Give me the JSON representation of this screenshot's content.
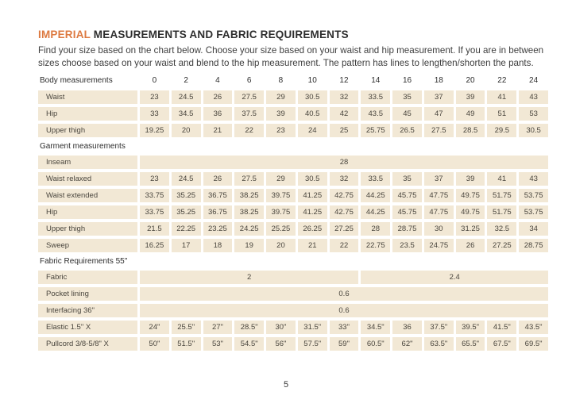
{
  "page": {
    "number": "5"
  },
  "colors": {
    "accent_orange": "#dd7a41",
    "cell_beige": "#f2e8d5",
    "text_dark": "#2d2d2d"
  },
  "header": {
    "title_accent": "IMPERIAL",
    "title_rest": " MEASUREMENTS AND FABRIC REQUIREMENTS",
    "intro": "Find your size based on the chart below. Choose your size based on your waist and hip measurement. If you are in between sizes choose based on your waist and blend to the hip measurement. The pattern has lines to lengthen/shorten the pants."
  },
  "table": {
    "header_row": {
      "label": "Body measurements",
      "sizes": [
        "0",
        "2",
        "4",
        "6",
        "8",
        "10",
        "12",
        "14",
        "16",
        "18",
        "20",
        "22",
        "24"
      ]
    },
    "sections": [
      {
        "heading": "",
        "rows": [
          {
            "label": "Waist",
            "values": [
              "23",
              "24.5",
              "26",
              "27.5",
              "29",
              "30.5",
              "32",
              "33.5",
              "35",
              "37",
              "39",
              "41",
              "43"
            ]
          },
          {
            "label": "Hip",
            "values": [
              "33",
              "34.5",
              "36",
              "37.5",
              "39",
              "40.5",
              "42",
              "43.5",
              "45",
              "47",
              "49",
              "51",
              "53"
            ]
          },
          {
            "label": "Upper thigh",
            "values": [
              "19.25",
              "20",
              "21",
              "22",
              "23",
              "24",
              "25",
              "25.75",
              "26.5",
              "27.5",
              "28.5",
              "29.5",
              "30.5"
            ]
          }
        ]
      },
      {
        "heading": "Garment measurements",
        "rows": [
          {
            "label": "Inseam",
            "merged": [
              {
                "text": "28",
                "span": 13
              }
            ]
          },
          {
            "label": "Waist relaxed",
            "values": [
              "23",
              "24.5",
              "26",
              "27.5",
              "29",
              "30.5",
              "32",
              "33.5",
              "35",
              "37",
              "39",
              "41",
              "43"
            ]
          },
          {
            "label": "Waist extended",
            "values": [
              "33.75",
              "35.25",
              "36.75",
              "38.25",
              "39.75",
              "41.25",
              "42.75",
              "44.25",
              "45.75",
              "47.75",
              "49.75",
              "51.75",
              "53.75"
            ]
          },
          {
            "label": "Hip",
            "values": [
              "33.75",
              "35.25",
              "36.75",
              "38.25",
              "39.75",
              "41.25",
              "42.75",
              "44.25",
              "45.75",
              "47.75",
              "49.75",
              "51.75",
              "53.75"
            ]
          },
          {
            "label": "Upper thigh",
            "values": [
              "21.5",
              "22.25",
              "23.25",
              "24.25",
              "25.25",
              "26.25",
              "27.25",
              "28",
              "28.75",
              "30",
              "31.25",
              "32.5",
              "34"
            ]
          },
          {
            "label": "Sweep",
            "values": [
              "16.25",
              "17",
              "18",
              "19",
              "20",
              "21",
              "22",
              "22.75",
              "23.5",
              "24.75",
              "26",
              "27.25",
              "28.75"
            ]
          }
        ]
      },
      {
        "heading": "Fabric Requirements 55\"",
        "rows": [
          {
            "label": "Fabric",
            "merged": [
              {
                "text": "2",
                "span": 7
              },
              {
                "text": "2.4",
                "span": 6
              }
            ]
          },
          {
            "label": "Pocket lining",
            "merged": [
              {
                "text": "0.6",
                "span": 13
              }
            ]
          },
          {
            "label": "Interfacing 36\"",
            "merged": [
              {
                "text": "0.6",
                "span": 13
              }
            ]
          },
          {
            "label": "Elastic 1.5\" X",
            "values": [
              "24\"",
              "25.5\"",
              "27\"",
              "28.5\"",
              "30\"",
              "31.5\"",
              "33\"",
              "34.5\"",
              "36",
              "37.5\"",
              "39.5\"",
              "41.5\"",
              "43.5\""
            ]
          },
          {
            "label": "Pullcord 3/8-5/8\" X",
            "values": [
              "50\"",
              "51.5\"",
              "53\"",
              "54.5\"",
              "56\"",
              "57.5\"",
              "59\"",
              "60.5\"",
              "62\"",
              "63.5\"",
              "65.5\"",
              "67.5\"",
              "69.5\""
            ]
          }
        ]
      }
    ]
  }
}
